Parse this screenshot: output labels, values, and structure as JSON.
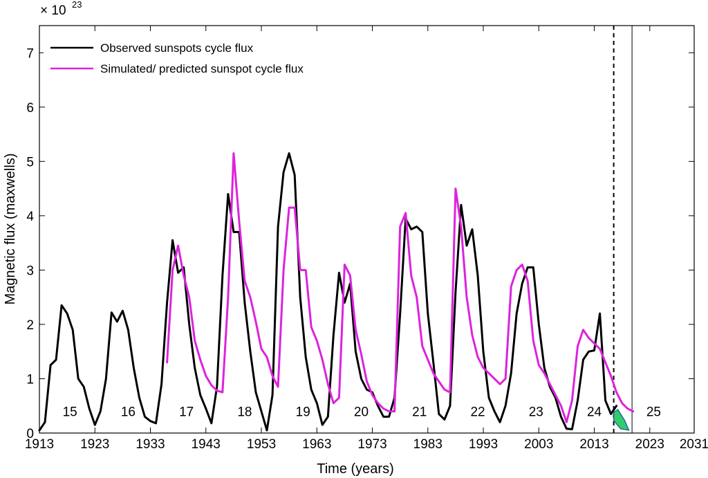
{
  "chart_data": {
    "type": "line",
    "xlabel": "Time (years)",
    "ylabel": "Magnetic flux (maxwells)",
    "y_multiplier": {
      "base": "× 10",
      "exponent": "23"
    },
    "xlim": [
      1913,
      2031
    ],
    "ylim": [
      0,
      7.5
    ],
    "x_ticks": [
      1913,
      1923,
      1933,
      1943,
      1953,
      1963,
      1973,
      1983,
      1993,
      2003,
      2013,
      2023,
      2031
    ],
    "y_ticks": [
      0,
      1,
      2,
      3,
      4,
      5,
      6,
      7
    ],
    "grid": false,
    "legend_position": "top-left",
    "vertical_lines": [
      {
        "x": 2016.5,
        "style": "dashed"
      },
      {
        "x": 2019.8,
        "style": "solid"
      }
    ],
    "cycle_labels": [
      {
        "label": "15",
        "x": 1918.5,
        "y": 0.4
      },
      {
        "label": "16",
        "x": 1929,
        "y": 0.4
      },
      {
        "label": "17",
        "x": 1939.5,
        "y": 0.4
      },
      {
        "label": "18",
        "x": 1950,
        "y": 0.4
      },
      {
        "label": "19",
        "x": 1960.5,
        "y": 0.4
      },
      {
        "label": "20",
        "x": 1971,
        "y": 0.4
      },
      {
        "label": "21",
        "x": 1981.5,
        "y": 0.4
      },
      {
        "label": "22",
        "x": 1992,
        "y": 0.4
      },
      {
        "label": "23",
        "x": 2002.5,
        "y": 0.4
      },
      {
        "label": "24",
        "x": 2013,
        "y": 0.4
      },
      {
        "label": "25",
        "x": 2023.7,
        "y": 0.4
      }
    ],
    "series": [
      {
        "name": "Observed sunspots cycle flux",
        "color": "#000000",
        "x": [
          1913,
          1914,
          1915,
          1916,
          1917,
          1918,
          1919,
          1920,
          1921,
          1922,
          1923,
          1924,
          1925,
          1926,
          1927,
          1928,
          1929,
          1930,
          1931,
          1932,
          1933,
          1934,
          1935,
          1936,
          1937,
          1938,
          1939,
          1940,
          1941,
          1942,
          1943,
          1944,
          1945,
          1946,
          1947,
          1948,
          1949,
          1950,
          1951,
          1952,
          1953,
          1954,
          1955,
          1956,
          1957,
          1958,
          1959,
          1960,
          1961,
          1962,
          1963,
          1964,
          1965,
          1966,
          1967,
          1968,
          1969,
          1970,
          1971,
          1972,
          1973,
          1974,
          1975,
          1976,
          1977,
          1978,
          1979,
          1980,
          1981,
          1982,
          1983,
          1984,
          1985,
          1986,
          1987,
          1988,
          1989,
          1990,
          1991,
          1992,
          1993,
          1994,
          1995,
          1996,
          1997,
          1998,
          1999,
          2000,
          2001,
          2002,
          2003,
          2004,
          2005,
          2006,
          2007,
          2008,
          2009,
          2010,
          2011,
          2012,
          2013,
          2014,
          2015,
          2016,
          2017
        ],
        "y": [
          0.05,
          0.2,
          1.25,
          1.35,
          2.35,
          2.2,
          1.9,
          1.0,
          0.85,
          0.45,
          0.15,
          0.4,
          1.0,
          2.22,
          2.05,
          2.25,
          1.9,
          1.2,
          0.65,
          0.3,
          0.22,
          0.18,
          0.9,
          2.4,
          3.55,
          2.95,
          3.05,
          2.0,
          1.2,
          0.7,
          0.45,
          0.18,
          0.85,
          2.9,
          4.4,
          3.7,
          3.7,
          2.4,
          1.5,
          0.75,
          0.4,
          0.05,
          0.7,
          3.8,
          4.8,
          5.15,
          4.75,
          2.5,
          1.4,
          0.8,
          0.55,
          0.15,
          0.3,
          1.8,
          2.95,
          2.4,
          2.75,
          1.5,
          1.0,
          0.8,
          0.75,
          0.5,
          0.3,
          0.3,
          0.65,
          2.2,
          3.95,
          3.75,
          3.8,
          3.7,
          2.2,
          1.3,
          0.35,
          0.25,
          0.5,
          2.6,
          4.2,
          3.45,
          3.75,
          2.9,
          1.5,
          0.65,
          0.4,
          0.2,
          0.5,
          1.1,
          2.2,
          2.75,
          3.05,
          3.05,
          2.0,
          1.2,
          0.85,
          0.65,
          0.3,
          0.08,
          0.07,
          0.6,
          1.35,
          1.5,
          1.52,
          2.2,
          0.6,
          0.35,
          0.5
        ]
      },
      {
        "name": "Simulated/ predicted sunspot cycle flux",
        "color": "#dd22dd",
        "x": [
          1936,
          1937,
          1938,
          1939,
          1940,
          1941,
          1942,
          1943,
          1944,
          1945,
          1946,
          1947,
          1948,
          1949,
          1950,
          1951,
          1952,
          1953,
          1954,
          1955,
          1956,
          1957,
          1958,
          1959,
          1960,
          1961,
          1962,
          1963,
          1964,
          1965,
          1966,
          1967,
          1968,
          1969,
          1970,
          1971,
          1972,
          1973,
          1974,
          1975,
          1976,
          1977,
          1978,
          1979,
          1980,
          1981,
          1982,
          1983,
          1984,
          1985,
          1986,
          1987,
          1988,
          1989,
          1990,
          1991,
          1992,
          1993,
          1994,
          1995,
          1996,
          1997,
          1998,
          1999,
          2000,
          2001,
          2002,
          2003,
          2004,
          2005,
          2006,
          2007,
          2008,
          2009,
          2010,
          2011,
          2012,
          2013,
          2014,
          2015,
          2016,
          2017,
          2018,
          2019,
          2020
        ],
        "y": [
          1.3,
          3.0,
          3.45,
          2.9,
          2.5,
          1.7,
          1.35,
          1.05,
          0.88,
          0.78,
          0.75,
          2.5,
          5.15,
          3.9,
          2.8,
          2.5,
          2.05,
          1.55,
          1.4,
          1.05,
          0.85,
          3.0,
          4.15,
          4.15,
          3.0,
          3.0,
          1.95,
          1.7,
          1.35,
          0.9,
          0.55,
          0.65,
          3.1,
          2.9,
          1.9,
          1.45,
          0.95,
          0.7,
          0.55,
          0.45,
          0.4,
          0.4,
          3.8,
          4.05,
          2.9,
          2.5,
          1.6,
          1.35,
          1.1,
          0.95,
          0.8,
          0.75,
          4.5,
          3.8,
          2.5,
          1.8,
          1.4,
          1.2,
          1.1,
          1.0,
          0.9,
          1.0,
          2.7,
          3.0,
          3.1,
          2.8,
          1.7,
          1.25,
          1.1,
          0.9,
          0.7,
          0.5,
          0.2,
          0.6,
          1.6,
          1.9,
          1.75,
          1.65,
          1.55,
          1.3,
          1.05,
          0.75,
          0.55,
          0.45,
          0.4
        ]
      }
    ]
  }
}
